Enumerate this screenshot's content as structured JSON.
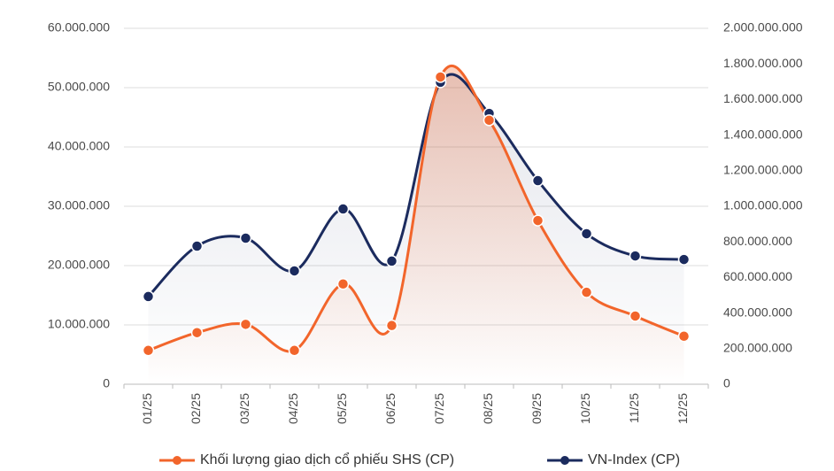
{
  "chart_data": {
    "type": "line",
    "smooth": true,
    "area": true,
    "legend": "bottom",
    "grid": true,
    "categories": [
      "01/25",
      "02/25",
      "03/25",
      "04/25",
      "05/25",
      "06/25",
      "07/25",
      "08/25",
      "09/25",
      "10/25",
      "11/25",
      "12/25"
    ],
    "series": [
      {
        "name": "Khối lượng giao dịch cổ phiếu SHS (CP)",
        "color": "#f2652b",
        "values": [
          5700000,
          8700000,
          10100000,
          5700000,
          16900000,
          9900000,
          51800000,
          44500000,
          27600000,
          15500000,
          11500000,
          8100000
        ]
      },
      {
        "name": "VN-Index (CP)",
        "color": "#1b2b5e",
        "axis": "y2",
        "values": [
          493000000,
          776000000,
          821000000,
          637000000,
          985000000,
          692000000,
          1697000000,
          1522000000,
          1144000000,
          846000000,
          721000000,
          701000000
        ]
      }
    ],
    "ylim": [
      0,
      60000000
    ],
    "yticks": [
      0,
      {
        "value": 10000000,
        "label": "10.000.000"
      },
      {
        "value": 20000000,
        "label": "20.000.000"
      },
      {
        "value": 30000000,
        "label": "30.000.000"
      },
      {
        "value": 40000000,
        "label": "40.000.000"
      },
      {
        "value": 50000000,
        "label": "50.000.000"
      },
      {
        "value": 60000000,
        "label": "60.000.000"
      }
    ],
    "y2lim": [
      0,
      2000000000
    ],
    "y2ticks": [
      0,
      {
        "value": 200000000,
        "label": "200.000.000"
      },
      {
        "value": 400000000,
        "label": "400.000.000"
      },
      {
        "value": 600000000,
        "label": "600.000.000"
      },
      {
        "value": 800000000,
        "label": "800.000.000"
      },
      {
        "value": 1000000000,
        "label": "1.000.000.000"
      },
      {
        "value": 1200000000,
        "label": "1.200.000.000"
      },
      {
        "value": 1400000000,
        "label": "1.400.000.000"
      },
      {
        "value": 1600000000,
        "label": "1.600.000.000"
      },
      {
        "value": 1800000000,
        "label": "1.800.000.000"
      },
      {
        "value": 2000000000,
        "label": "2.000.000.000"
      }
    ]
  }
}
